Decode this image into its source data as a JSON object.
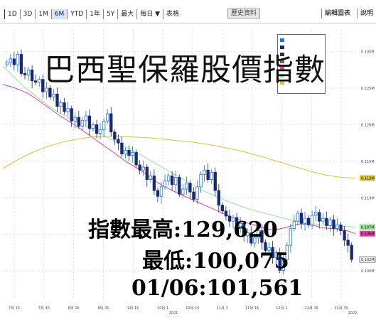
{
  "toolbar": {
    "items": [
      "1D",
      "3D",
      "1M",
      "6M",
      "YTD",
      "1年",
      "5Y",
      "最大",
      "每日 ▼",
      "表格"
    ],
    "active_index": 3,
    "right_items": [
      "歷史資料",
      "編輯圖表",
      "說明"
    ]
  },
  "title": "巴西聖保羅股價指數",
  "stats": {
    "high": "指數最高:129,620",
    "low": "最低:100,075",
    "latest": "01/06:101,561"
  },
  "colors": {
    "up": "#1a73e8",
    "down": "#1a2a6e",
    "ma_pink": "#e040a0",
    "ma_green": "#9be39b",
    "ma_yellow": "#d8c23a",
    "grid": "#cfcfcf"
  },
  "chart_data": {
    "type": "candlestick",
    "y_tick_labels": [
      "0.130M",
      "0.125M",
      "0.120M",
      "0.115M",
      "0.110M",
      "0.105M",
      "0.100M"
    ],
    "y_ticks": [
      130000,
      125000,
      120000,
      115000,
      110000,
      105000,
      100000
    ],
    "ylim": [
      97000,
      132000
    ],
    "x_tick_labels": [
      "7月 15",
      "7月 30",
      "8月 16",
      "8月 31",
      "9月 16",
      "10月 1",
      "10月 15",
      "11月 1",
      "11月 16",
      "12月 1",
      "12月 15",
      "12月 30"
    ],
    "x_sub_labels": [
      "2021",
      "2022"
    ],
    "value_tags": [
      "0.113M",
      "0.107M",
      "0.106M",
      "0.102M"
    ],
    "closes": [
      128500,
      129000,
      128200,
      129620,
      127000,
      126800,
      127500,
      126000,
      125800,
      126200,
      124500,
      125000,
      123800,
      124200,
      122500,
      123000,
      121800,
      122200,
      120500,
      121000,
      119800,
      120600,
      121200,
      119500,
      120000,
      118800,
      119300,
      120500,
      121500,
      119000,
      118000,
      117500,
      116000,
      116500,
      115800,
      116200,
      114500,
      113800,
      114200,
      112500,
      113000,
      111000,
      110200,
      111500,
      112300,
      113000,
      111800,
      112800,
      110500,
      111200,
      112000,
      110800,
      109800,
      111500,
      113200,
      113800,
      112500,
      113500,
      111000,
      109000,
      108200,
      107500,
      106800,
      107300,
      105800,
      106500,
      104800,
      105200,
      103800,
      104500,
      105500,
      103900,
      102800,
      103200,
      101800,
      102500,
      100075,
      101500,
      103500,
      105800,
      106800,
      107900,
      106500,
      107200,
      106300,
      107600,
      108000,
      106800,
      107200,
      106200,
      107000,
      105800,
      106300,
      105500,
      104200,
      103500,
      101561
    ],
    "series": [
      {
        "type": "ma",
        "color": "pink",
        "values": [
          125500,
          125200,
          124800,
          124300,
          123600,
          122800,
          122000,
          121200,
          120500,
          119800,
          119000,
          118200,
          117400,
          116600,
          115800,
          115000,
          114300,
          113600,
          112800,
          112000,
          111400,
          110800,
          110300,
          109800,
          109300,
          108800,
          108300,
          107800,
          107300,
          106900,
          106500,
          106200,
          105800,
          105600,
          105800,
          106100,
          106400,
          106400,
          106200,
          105900,
          105800,
          105700,
          105500,
          105100
        ]
      },
      {
        "type": "ma",
        "color": "green",
        "values": [
          128000,
          126500,
          125000,
          123800,
          122600,
          121600,
          120800,
          120000,
          119200,
          118400,
          117600,
          116800,
          116000,
          115100,
          114200,
          113300,
          112400,
          111500,
          110700,
          110000,
          109400,
          108800,
          108300,
          107900,
          107500,
          107100,
          106800,
          106500,
          106300,
          106200,
          106100,
          106000
        ]
      },
      {
        "type": "ma",
        "color": "yellow",
        "values": [
          114000,
          115200,
          116200,
          117000,
          117600,
          118000,
          118300,
          118400,
          118400,
          118300,
          118200,
          118000,
          117800,
          117600,
          117300,
          116900,
          116500,
          116000,
          115400,
          114800,
          114200,
          113600,
          113100,
          112800,
          112700
        ]
      }
    ]
  }
}
